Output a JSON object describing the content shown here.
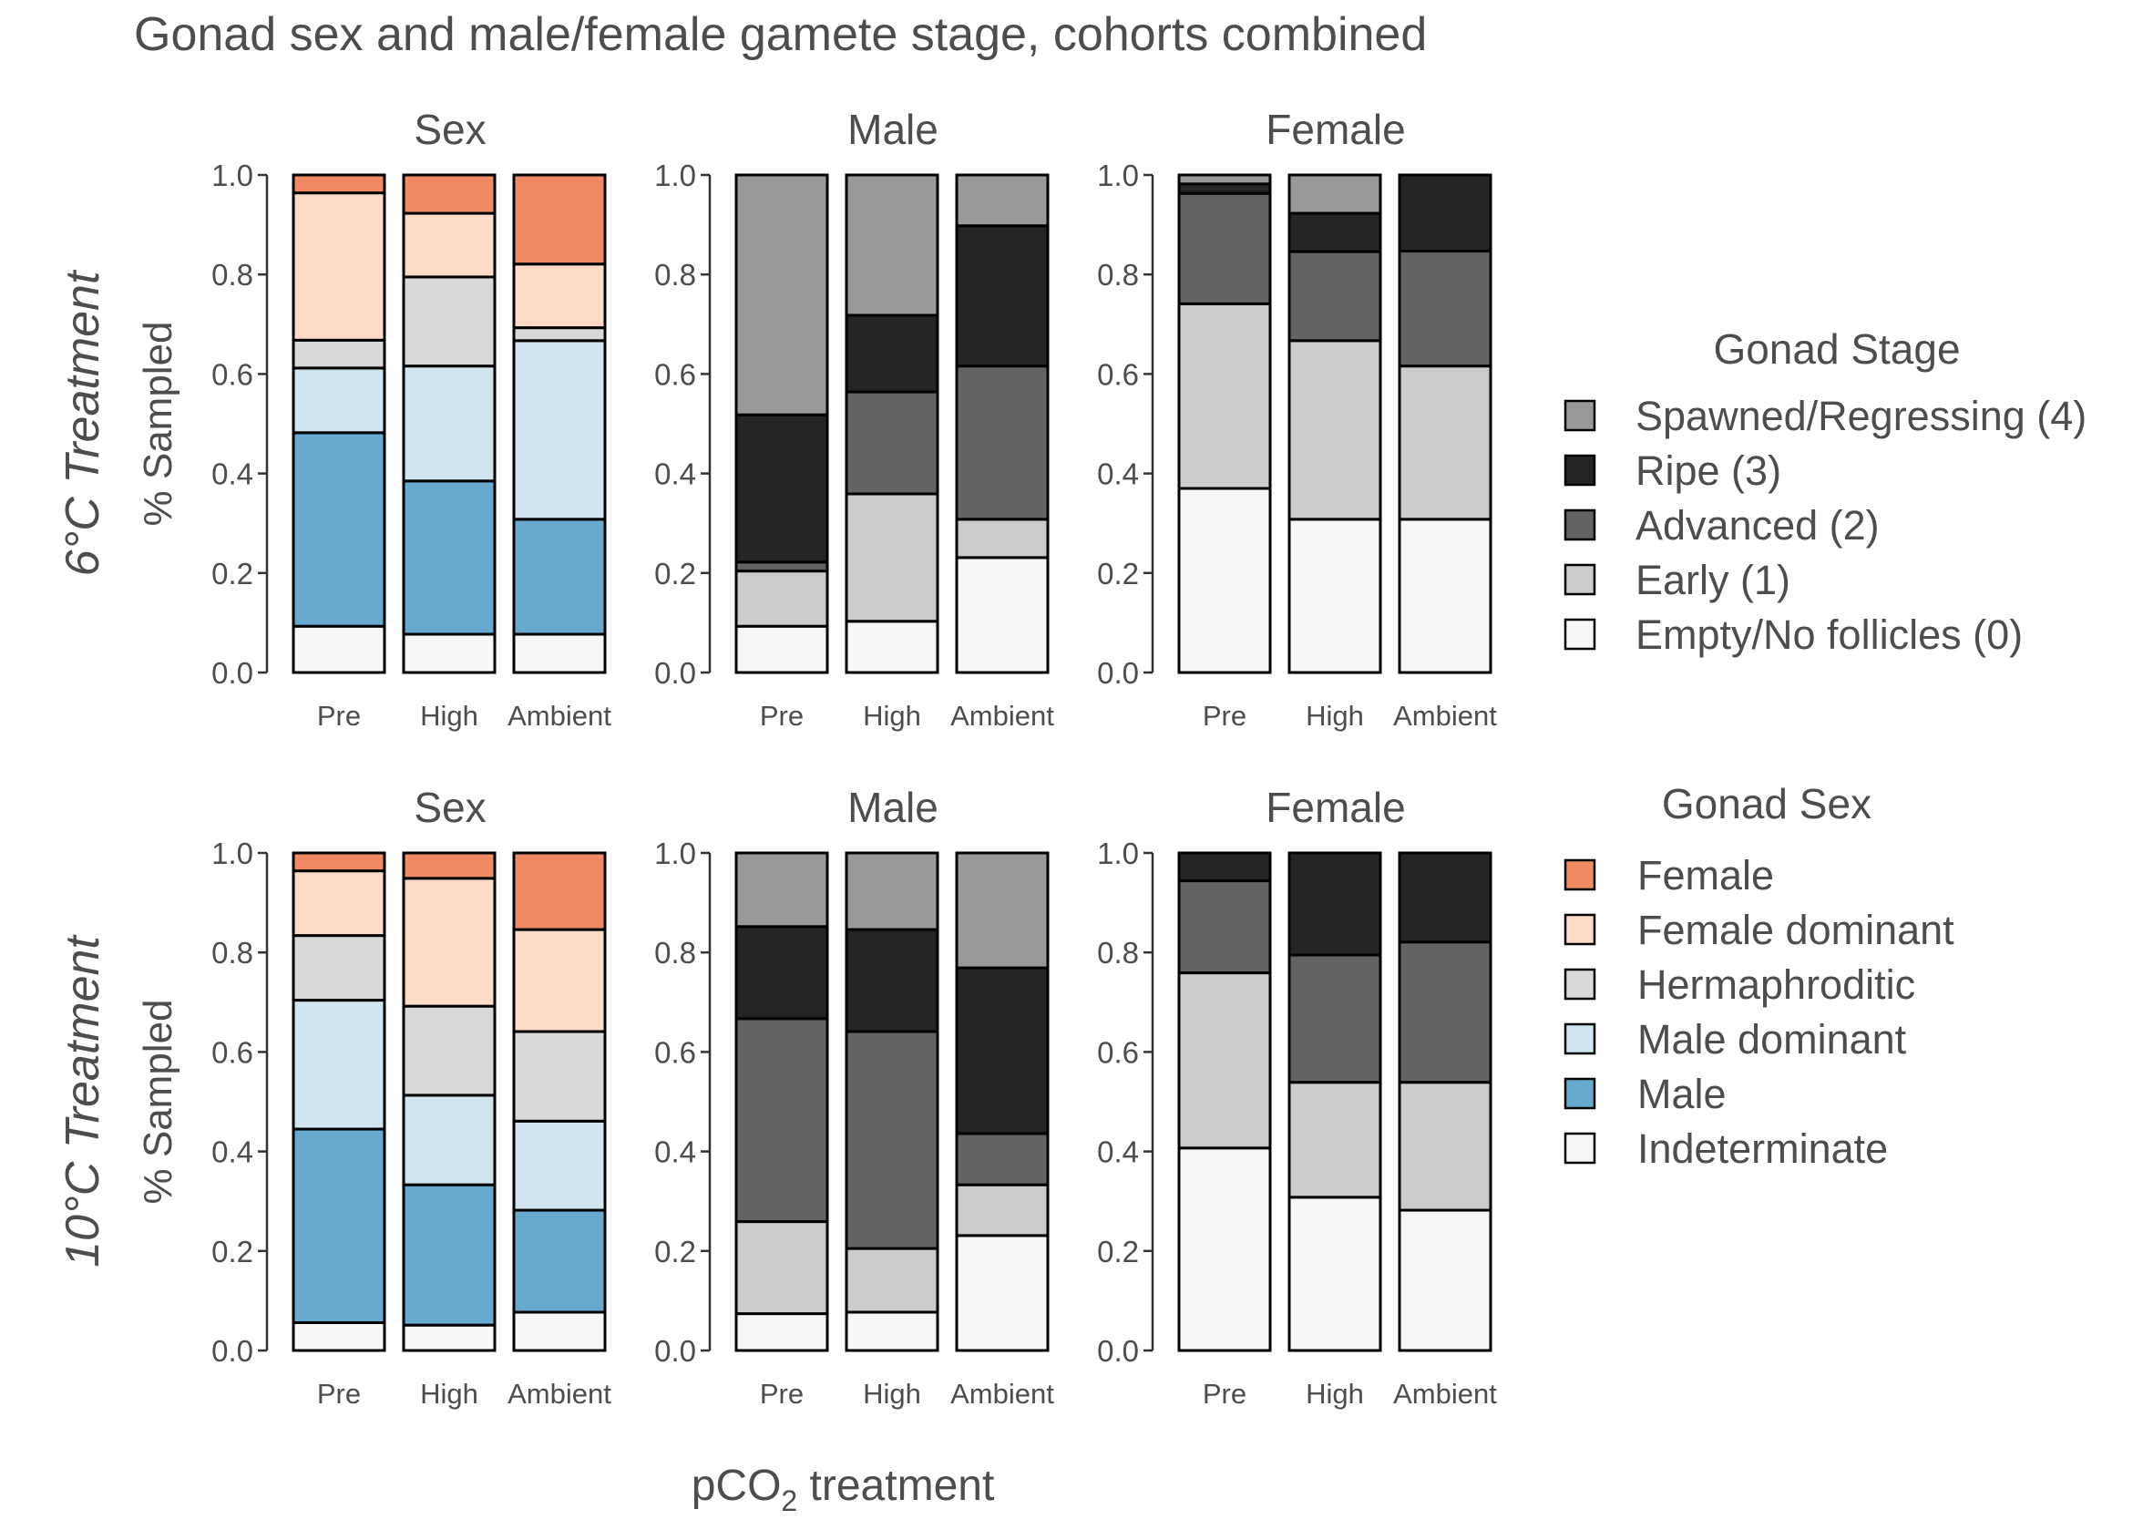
{
  "title": "Gonad sex and male/female gamete stage, cohorts combined",
  "xlabel": "pCO",
  "xlabel_sub": "2",
  "xlabel_suffix": " treatment",
  "ylabel": "% Sampled",
  "colors": {
    "Female": "#ef8a62",
    "Female dominant": "#fddbc7",
    "Hermaphroditic": "#d9d9d9",
    "Male dominant": "#d1e5f0",
    "Male": "#67a9cf",
    "Indeterminate": "#f7f7f7",
    "Spawned/Regressing (4)": "#999999",
    "Ripe (3)": "#252525",
    "Advanced (2)": "#636363",
    "Early (1)": "#cccccc",
    "Empty/No follicles (0)": "#f7f7f7"
  },
  "legends": {
    "stage": {
      "title": "Gonad Stage",
      "items": [
        "Spawned/Regressing (4)",
        "Ripe (3)",
        "Advanced (2)",
        "Early (1)",
        "Empty/No follicles (0)"
      ]
    },
    "sex": {
      "title": "Gonad Sex",
      "items": [
        "Female",
        "Female dominant",
        "Hermaphroditic",
        "Male dominant",
        "Male",
        "Indeterminate"
      ]
    }
  },
  "chart_data": [
    {
      "type": "bar",
      "stacked": true,
      "row_label": "6°C Treatment",
      "panel": "Sex",
      "categories": [
        "Pre",
        "High",
        "Ambient"
      ],
      "ylim": [
        0,
        1
      ],
      "yticks": [
        "0.0",
        "0.2",
        "0.4",
        "0.6",
        "0.8",
        "1.0"
      ],
      "series": [
        {
          "name": "Indeterminate",
          "values": [
            0.093,
            0.077,
            0.077
          ]
        },
        {
          "name": "Male",
          "values": [
            0.389,
            0.308,
            0.231
          ]
        },
        {
          "name": "Male dominant",
          "values": [
            0.13,
            0.231,
            0.359
          ]
        },
        {
          "name": "Hermaphroditic",
          "values": [
            0.056,
            0.179,
            0.026
          ]
        },
        {
          "name": "Female dominant",
          "values": [
            0.296,
            0.128,
            0.128
          ]
        },
        {
          "name": "Female",
          "values": [
            0.036,
            0.077,
            0.179
          ]
        }
      ]
    },
    {
      "type": "bar",
      "stacked": true,
      "row_label": "6°C Treatment",
      "panel": "Male",
      "categories": [
        "Pre",
        "High",
        "Ambient"
      ],
      "ylim": [
        0,
        1
      ],
      "yticks": [
        "0.0",
        "0.2",
        "0.4",
        "0.6",
        "0.8",
        "1.0"
      ],
      "series": [
        {
          "name": "Empty/No follicles (0)",
          "values": [
            0.093,
            0.103,
            0.231
          ]
        },
        {
          "name": "Early (1)",
          "values": [
            0.111,
            0.256,
            0.077
          ]
        },
        {
          "name": "Advanced (2)",
          "values": [
            0.018,
            0.205,
            0.308
          ]
        },
        {
          "name": "Ripe (3)",
          "values": [
            0.296,
            0.154,
            0.282
          ]
        },
        {
          "name": "Spawned/Regressing (4)",
          "values": [
            0.482,
            0.282,
            0.102
          ]
        }
      ]
    },
    {
      "type": "bar",
      "stacked": true,
      "row_label": "6°C Treatment",
      "panel": "Female",
      "categories": [
        "Pre",
        "High",
        "Ambient"
      ],
      "ylim": [
        0,
        1
      ],
      "yticks": [
        "0.0",
        "0.2",
        "0.4",
        "0.6",
        "0.8",
        "1.0"
      ],
      "series": [
        {
          "name": "Empty/No follicles (0)",
          "values": [
            0.37,
            0.308,
            0.308
          ]
        },
        {
          "name": "Early (1)",
          "values": [
            0.371,
            0.359,
            0.308
          ]
        },
        {
          "name": "Advanced (2)",
          "values": [
            0.222,
            0.179,
            0.231
          ]
        },
        {
          "name": "Ripe (3)",
          "values": [
            0.019,
            0.077,
            0.153
          ]
        },
        {
          "name": "Spawned/Regressing (4)",
          "values": [
            0.018,
            0.077,
            0.0
          ]
        }
      ]
    },
    {
      "type": "bar",
      "stacked": true,
      "row_label": "10°C Treatment",
      "panel": "Sex",
      "categories": [
        "Pre",
        "High",
        "Ambient"
      ],
      "ylim": [
        0,
        1
      ],
      "yticks": [
        "0.0",
        "0.2",
        "0.4",
        "0.6",
        "0.8",
        "1.0"
      ],
      "series": [
        {
          "name": "Indeterminate",
          "values": [
            0.056,
            0.051,
            0.077
          ]
        },
        {
          "name": "Male",
          "values": [
            0.389,
            0.282,
            0.205
          ]
        },
        {
          "name": "Male dominant",
          "values": [
            0.259,
            0.18,
            0.179
          ]
        },
        {
          "name": "Hermaphroditic",
          "values": [
            0.13,
            0.179,
            0.18
          ]
        },
        {
          "name": "Female dominant",
          "values": [
            0.13,
            0.257,
            0.205
          ]
        },
        {
          "name": "Female",
          "values": [
            0.036,
            0.051,
            0.154
          ]
        }
      ]
    },
    {
      "type": "bar",
      "stacked": true,
      "row_label": "10°C Treatment",
      "panel": "Male",
      "categories": [
        "Pre",
        "High",
        "Ambient"
      ],
      "ylim": [
        0,
        1
      ],
      "yticks": [
        "0.0",
        "0.2",
        "0.4",
        "0.6",
        "0.8",
        "1.0"
      ],
      "series": [
        {
          "name": "Empty/No follicles (0)",
          "values": [
            0.074,
            0.077,
            0.231
          ]
        },
        {
          "name": "Early (1)",
          "values": [
            0.185,
            0.128,
            0.102
          ]
        },
        {
          "name": "Advanced (2)",
          "values": [
            0.408,
            0.436,
            0.103
          ]
        },
        {
          "name": "Ripe (3)",
          "values": [
            0.185,
            0.205,
            0.333
          ]
        },
        {
          "name": "Spawned/Regressing (4)",
          "values": [
            0.148,
            0.154,
            0.231
          ]
        }
      ]
    },
    {
      "type": "bar",
      "stacked": true,
      "row_label": "10°C Treatment",
      "panel": "Female",
      "categories": [
        "Pre",
        "High",
        "Ambient"
      ],
      "ylim": [
        0,
        1
      ],
      "yticks": [
        "0.0",
        "0.2",
        "0.4",
        "0.6",
        "0.8",
        "1.0"
      ],
      "series": [
        {
          "name": "Empty/No follicles (0)",
          "values": [
            0.407,
            0.308,
            0.282
          ]
        },
        {
          "name": "Early (1)",
          "values": [
            0.352,
            0.231,
            0.257
          ]
        },
        {
          "name": "Advanced (2)",
          "values": [
            0.185,
            0.256,
            0.282
          ]
        },
        {
          "name": "Ripe (3)",
          "values": [
            0.056,
            0.205,
            0.179
          ]
        },
        {
          "name": "Spawned/Regressing (4)",
          "values": [
            0.0,
            0.0,
            0.0
          ]
        }
      ]
    }
  ]
}
